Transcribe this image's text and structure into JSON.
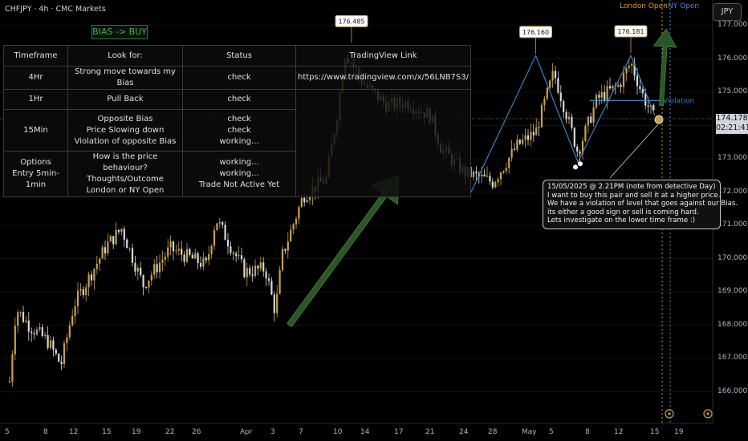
{
  "header": {
    "symbol_title": "CHFJPY · 4h · CMC Markets",
    "bias_label": "BIAS -> BUY",
    "currency_button": "JPY",
    "london_open_label": "London Open",
    "ny_open_label": "NY Open"
  },
  "plan_table": {
    "headers": [
      "Timeframe",
      "Look for:",
      "Status",
      "TradingView Link"
    ],
    "rows": [
      {
        "timeframe": "4Hr",
        "look_for": "Strong move towards my Bias",
        "status": "check",
        "link": "https://www.tradingview.com/x/56LNB7S3/"
      },
      {
        "timeframe": "1Hr",
        "look_for": "Pull Back",
        "status": "check",
        "link": ""
      },
      {
        "timeframe": "15Min",
        "look_for": "Opposite Bias\nPrice Slowing down\nViolation of opposite Bias",
        "status": "check\ncheck\nworking...",
        "link": ""
      },
      {
        "timeframe": "Options\nEntry 5min-1min",
        "look_for": "How is the price behaviour?\nThoughts/Outcome\nLondon or NY Open",
        "status": "working...\nworking...\nTrade Not Active Yet",
        "link": ""
      }
    ]
  },
  "current_price": {
    "value": "174.178",
    "countdown": "02:21:41"
  },
  "annotations": {
    "violation_label": "Violation",
    "peak_labels": [
      "176.485",
      "176.160",
      "176.181"
    ],
    "note_lines": [
      "15/05/2025 @ 2.21PM (note from detective Day)",
      "I want to buy this pair and sell it at a higher price.",
      "We have a violation of level that goes against our Bias.",
      "its either a good sign or sell is coming hard.",
      "Lets investigate on the lower time frame :)"
    ]
  },
  "colors": {
    "background": "#000000",
    "candle_up": "#c8a24a",
    "candle_down": "#d8d8d8",
    "arrow": "#2e5e2a",
    "structure_line": "#3f7fbf",
    "session_london": "#d39a2f",
    "session_ny": "#5b7ec7"
  },
  "chart_data": {
    "type": "candlestick",
    "symbol": "CHFJPY",
    "timeframe": "4h",
    "y_axis": {
      "unit": "JPY",
      "range": [
        165.6,
        177.5
      ],
      "ticks": [
        "177.000",
        "176.000",
        "175.000",
        "174.000",
        "173.000",
        "172.000",
        "171.000",
        "170.000",
        "169.000",
        "168.000",
        "167.000",
        "166.000"
      ]
    },
    "x_axis": {
      "tick_labels": [
        "5",
        "8",
        "12",
        "15",
        "19",
        "22",
        "26",
        "Apr",
        "3",
        "7",
        "10",
        "14",
        "17",
        "21",
        "24",
        "28",
        "May",
        "5",
        "8",
        "12",
        "15",
        "19"
      ]
    },
    "approx_closes": [
      {
        "date": "Mar 4",
        "close": 166.3
      },
      {
        "date": "Mar 5",
        "close": 168.5
      },
      {
        "date": "Mar 7",
        "close": 168.0
      },
      {
        "date": "Mar 10",
        "close": 167.5
      },
      {
        "date": "Mar 12",
        "close": 166.8
      },
      {
        "date": "Mar 14",
        "close": 168.6
      },
      {
        "date": "Mar 17",
        "close": 170.4
      },
      {
        "date": "Mar 18",
        "close": 170.9
      },
      {
        "date": "Mar 20",
        "close": 169.2
      },
      {
        "date": "Mar 24",
        "close": 170.3
      },
      {
        "date": "Mar 27",
        "close": 169.8
      },
      {
        "date": "Mar 28",
        "close": 171.2
      },
      {
        "date": "Mar 31",
        "close": 169.6
      },
      {
        "date": "Apr 2",
        "close": 169.7
      },
      {
        "date": "Apr 3",
        "close": 168.4
      },
      {
        "date": "Apr 4",
        "close": 170.1
      },
      {
        "date": "Apr 7",
        "close": 171.9
      },
      {
        "date": "Apr 9",
        "close": 172.4
      },
      {
        "date": "Apr 10",
        "close": 174.5
      },
      {
        "date": "Apr 11",
        "close": 176.2
      },
      {
        "date": "Apr 14",
        "close": 175.2
      },
      {
        "date": "Apr 16",
        "close": 174.6
      },
      {
        "date": "Apr 18",
        "close": 174.7
      },
      {
        "date": "Apr 21",
        "close": 174.3
      },
      {
        "date": "Apr 22",
        "close": 173.3
      },
      {
        "date": "Apr 24",
        "close": 172.6
      },
      {
        "date": "Apr 28",
        "close": 172.3
      },
      {
        "date": "Apr 30",
        "close": 173.4
      },
      {
        "date": "May 2",
        "close": 173.8
      },
      {
        "date": "May 5",
        "close": 175.6
      },
      {
        "date": "May 7",
        "close": 173.2
      },
      {
        "date": "May 9",
        "close": 174.8
      },
      {
        "date": "May 12",
        "close": 175.2
      },
      {
        "date": "May 13",
        "close": 175.9
      },
      {
        "date": "May 14",
        "close": 174.9
      },
      {
        "date": "May 15",
        "close": 174.178
      }
    ],
    "structure_lines": {
      "violation_level": 174.75,
      "zigzag_points": [
        {
          "date": "Apr 25",
          "price": 172.0
        },
        {
          "date": "May 2",
          "price": 176.1
        },
        {
          "date": "May 7",
          "price": 172.9
        },
        {
          "date": "May 13",
          "price": 176.1
        },
        {
          "date": "May 15",
          "price": 174.3
        }
      ]
    },
    "arrows": [
      {
        "from": {
          "date": "Apr 5",
          "price": 168.0
        },
        "to": {
          "date": "Apr 17",
          "price": 172.5
        }
      },
      {
        "from": {
          "date": "May 16",
          "price": 174.6
        },
        "to": {
          "date": "May 17",
          "price": 176.9
        }
      }
    ]
  }
}
